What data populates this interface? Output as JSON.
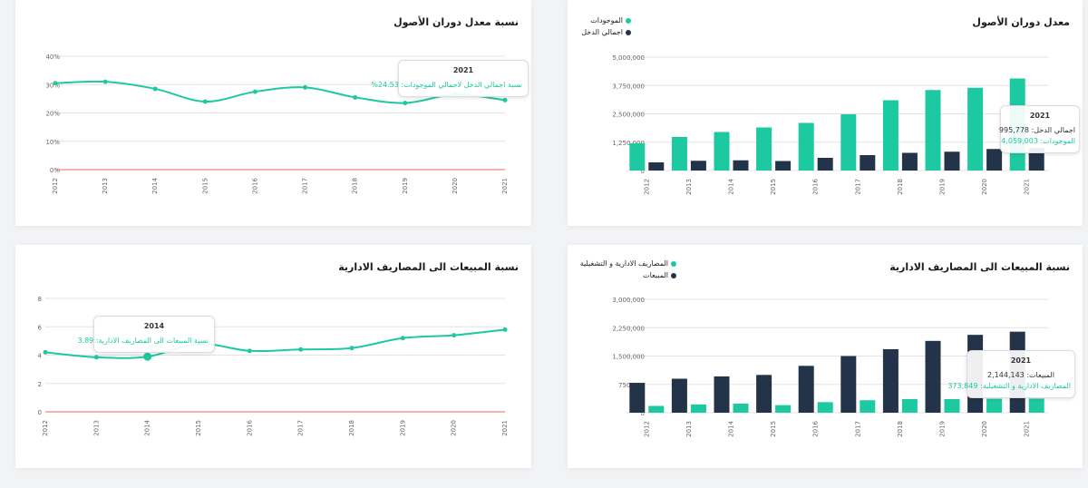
{
  "colors": {
    "teal": "#1dc9a0",
    "navy": "#233349",
    "zero_line": "#f06262",
    "grid": "#e3e3e3",
    "axis_text": "#666666"
  },
  "chart_data": [
    {
      "id": "asset-turnover-ratio",
      "type": "line",
      "title": "نسبة معدل دوران الأصول",
      "x": [
        "2012",
        "2013",
        "2014",
        "2015",
        "2016",
        "2017",
        "2018",
        "2019",
        "2020",
        "2021"
      ],
      "series": [
        {
          "name": "نسبة اجمالي الدخل لاجمالي الموجودات",
          "values": [
            30.5,
            31,
            28.5,
            24,
            27.5,
            29,
            25.5,
            23.5,
            26.5,
            24.53
          ]
        }
      ],
      "yticks": [
        "0%",
        "10%",
        "20%",
        "30%",
        "40%"
      ],
      "ylim": [
        0,
        40
      ],
      "tooltip": {
        "year": "2021",
        "label": "نسبة اجمالي الدخل لاجمالي الموجودات:",
        "value": "24.53%"
      }
    },
    {
      "id": "asset-turnover-bars",
      "type": "bar",
      "title": "معدل دوران الأصول",
      "categories": [
        "2012",
        "2013",
        "2014",
        "2015",
        "2016",
        "2017",
        "2018",
        "2019",
        "2020",
        "2021"
      ],
      "series": [
        {
          "name": "الموجودات",
          "color": "teal",
          "values": [
            1200000,
            1480000,
            1700000,
            1900000,
            2100000,
            2480000,
            3100000,
            3550000,
            3650000,
            4059003
          ]
        },
        {
          "name": "اجمالي الدخل",
          "color": "navy",
          "values": [
            360000,
            430000,
            450000,
            420000,
            560000,
            680000,
            780000,
            830000,
            950000,
            995778
          ]
        }
      ],
      "yticks": [
        "0",
        "1,250,000",
        "2,500,000",
        "3,750,000",
        "5,000,000"
      ],
      "ylim": [
        0,
        5000000
      ],
      "legend": [
        "الموجودات",
        "اجمالي الدخل"
      ],
      "tooltip": {
        "year": "2021",
        "row1_label": "اجمالي الدخل:",
        "row1_value": "995,778",
        "row2_label": "الموجودات:",
        "row2_value": "4,059,003"
      }
    },
    {
      "id": "sales-to-admin-ratio",
      "type": "line",
      "title": "نسبة المبيعات الى المصاريف الادارية",
      "x": [
        "2012",
        "2013",
        "2014",
        "2015",
        "2016",
        "2017",
        "2018",
        "2019",
        "2020",
        "2021"
      ],
      "series": [
        {
          "name": "نسبة المبيعات الى المصاريف الادارية",
          "values": [
            4.2,
            3.85,
            3.89,
            4.8,
            4.3,
            4.4,
            4.5,
            5.2,
            5.4,
            5.8
          ]
        }
      ],
      "yticks": [
        "0",
        "2",
        "4",
        "6",
        "8"
      ],
      "ylim": [
        0,
        8
      ],
      "tooltip": {
        "year": "2014",
        "label": "نسبة المبيعات الى المصاريف الادارية:",
        "value": "3.89"
      }
    },
    {
      "id": "sales-to-admin-bars",
      "type": "bar",
      "title": "نسبة المبيعات الى المصاريف الادارية",
      "categories": [
        "2012",
        "2013",
        "2014",
        "2015",
        "2016",
        "2017",
        "2018",
        "2019",
        "2020",
        "2021"
      ],
      "series": [
        {
          "name": "المبيعات",
          "color": "navy",
          "values": [
            790000,
            900000,
            960000,
            1000000,
            1240000,
            1500000,
            1680000,
            1900000,
            2060000,
            2144143
          ]
        },
        {
          "name": "المصاريف الادارية و التشغيلية",
          "color": "teal",
          "values": [
            180000,
            220000,
            240000,
            200000,
            280000,
            330000,
            360000,
            360000,
            370000,
            373849
          ]
        }
      ],
      "yticks": [
        "0",
        "750,000",
        "1,500,000",
        "2,250,000",
        "3,000,000"
      ],
      "ylim": [
        0,
        3000000
      ],
      "legend": [
        "المصاريف الادارية و التشغيلية",
        "المبيعات"
      ],
      "tooltip": {
        "year": "2021",
        "row1_label": "المبيعات:",
        "row1_value": "2,144,143",
        "row2_label": "المصاريف الادارية و التشغيلية:",
        "row2_value": "373,849"
      }
    }
  ]
}
